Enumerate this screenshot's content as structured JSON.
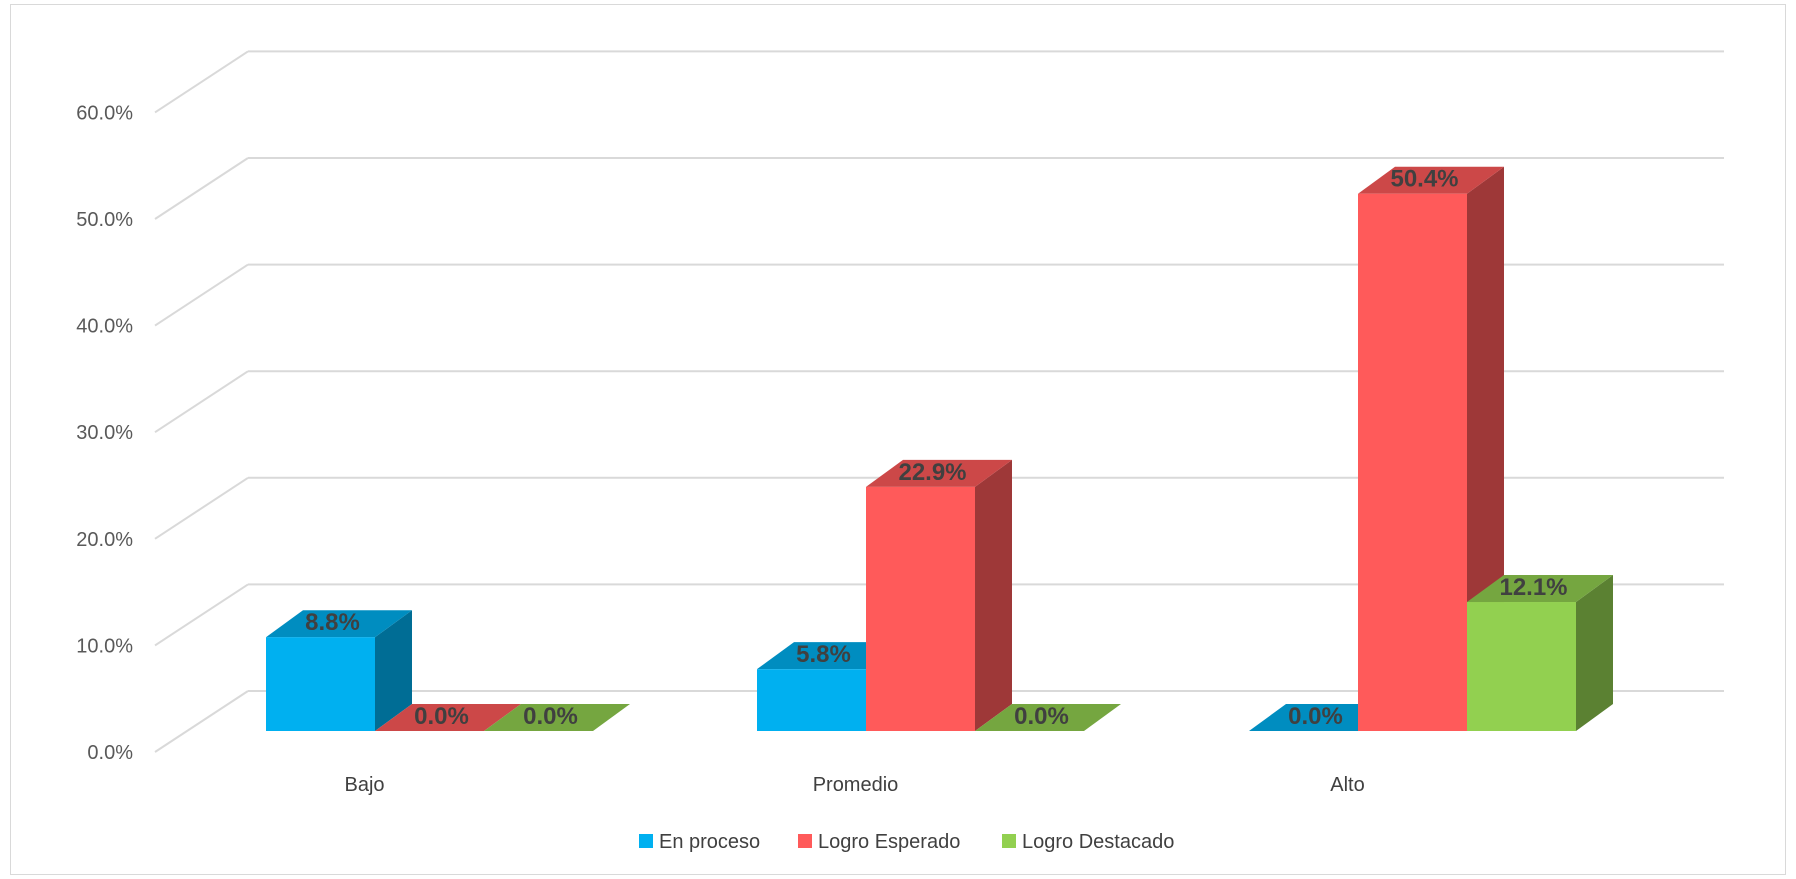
{
  "chart_data": {
    "type": "bar",
    "title": "",
    "xlabel": "",
    "ylabel": "",
    "categories": [
      "Bajo",
      "Promedio",
      "Alto"
    ],
    "series": [
      {
        "name": "En proceso",
        "values": [
          8.8,
          5.8,
          0.0
        ],
        "labels": [
          "8.8%",
          "5.8%",
          "0.0%"
        ],
        "color": "#00B0F0"
      },
      {
        "name": "Logro Esperado",
        "values": [
          0.0,
          22.9,
          50.4
        ],
        "labels": [
          "0.0%",
          "22.9%",
          "50.4%"
        ],
        "color": "#FF5A5A"
      },
      {
        "name": "Logro Destacado",
        "values": [
          0.0,
          0.0,
          12.1
        ],
        "labels": [
          "0.0%",
          "0.0%",
          "12.1%"
        ],
        "color": "#92D050"
      }
    ],
    "ylim": [
      0,
      60
    ],
    "yticks": [
      "0.0%",
      "10.0%",
      "20.0%",
      "30.0%",
      "40.0%",
      "50.0%",
      "60.0%"
    ],
    "grid": true,
    "legend": "bottom",
    "three_d": true
  }
}
